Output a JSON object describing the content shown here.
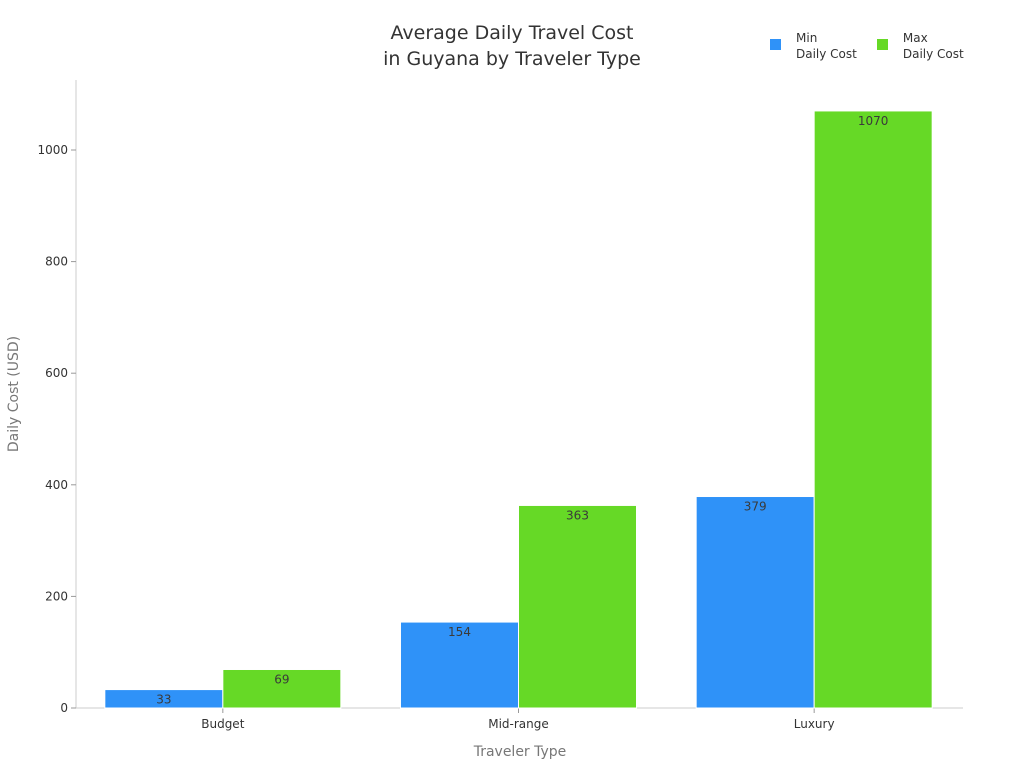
{
  "header": {
    "title_line1": "Average Daily Travel Cost",
    "title_line2": "in Guyana by Traveler Type"
  },
  "legend": {
    "items": [
      {
        "label": "Min\nDaily Cost",
        "color": "#2f92f8"
      },
      {
        "label": "Max\nDaily Cost",
        "color": "#66d926"
      }
    ]
  },
  "axes": {
    "xlabel": "Traveler Type",
    "ylabel": "Daily Cost (USD)",
    "yticks": [
      "0",
      "200",
      "400",
      "600",
      "800",
      "1000"
    ]
  },
  "chart_data": {
    "type": "bar",
    "title": "Average Daily Travel Cost in Guyana by Traveler Type",
    "xlabel": "Traveler Type",
    "ylabel": "Daily Cost (USD)",
    "categories": [
      "Budget",
      "Mid-range",
      "Luxury"
    ],
    "series": [
      {
        "name": "Min Daily Cost",
        "color": "#2f92f8",
        "values": [
          33,
          154,
          379
        ]
      },
      {
        "name": "Max Daily Cost",
        "color": "#66d926",
        "values": [
          69,
          363,
          1070
        ]
      }
    ],
    "ylim": [
      0,
      1130
    ],
    "yticks": [
      0,
      200,
      400,
      600,
      800,
      1000
    ],
    "grid": false,
    "legend_position": "top-right",
    "data_labels": true
  }
}
